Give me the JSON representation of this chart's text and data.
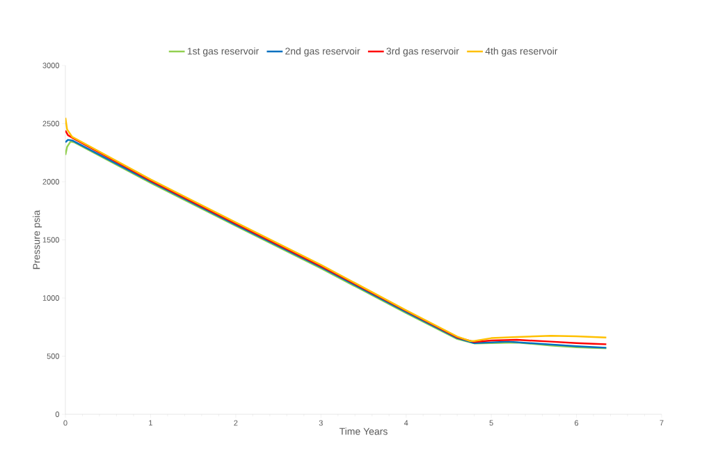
{
  "chart_data": {
    "type": "line",
    "xlabel": "Time    Years",
    "ylabel": "Pressure    psia",
    "xlim": [
      0,
      7
    ],
    "xticks": [
      0,
      1,
      2,
      3,
      4,
      5,
      6,
      7
    ],
    "ylim": [
      0,
      3000
    ],
    "yticks": [
      0,
      500,
      1000,
      1500,
      2000,
      2500,
      3000
    ],
    "grid": false,
    "legend": "top",
    "marker": "none",
    "line_style": "solid",
    "series": [
      {
        "name": "1st gas reservoir",
        "color": "#92d050",
        "x": [
          0,
          0.02,
          0.06,
          0.1,
          1,
          2,
          3,
          4,
          4.6,
          4.8,
          5,
          5.3,
          5.7,
          6,
          6.35
        ],
        "values": [
          2230,
          2300,
          2345,
          2340,
          1990,
          1620,
          1255,
          870,
          648,
          610,
          612,
          617,
          592,
          577,
          567
        ]
      },
      {
        "name": "2nd gas reservoir",
        "color": "#0070c0",
        "x": [
          0,
          0.03,
          0.08,
          1,
          2,
          3,
          4,
          4.6,
          4.8,
          5.2,
          5.6,
          6,
          6.35
        ],
        "values": [
          2340,
          2360,
          2355,
          2000,
          1630,
          1265,
          880,
          655,
          612,
          625,
          605,
          585,
          572
        ]
      },
      {
        "name": "3rd gas reservoir",
        "color": "#ff0000",
        "x": [
          0,
          0.03,
          0.1,
          1,
          2,
          3,
          4,
          4.6,
          4.8,
          5,
          5.3,
          5.7,
          6,
          6.35
        ],
        "values": [
          2440,
          2400,
          2370,
          2010,
          1640,
          1275,
          890,
          662,
          622,
          635,
          640,
          625,
          612,
          602
        ]
      },
      {
        "name": "4th gas reservoir",
        "color": "#ffc000",
        "x": [
          0,
          0.02,
          0.08,
          1,
          2,
          3,
          4,
          4.6,
          4.75,
          4.8,
          5,
          5.3,
          5.7,
          6,
          6.35
        ],
        "values": [
          2550,
          2450,
          2385,
          2020,
          1650,
          1285,
          895,
          668,
          630,
          630,
          655,
          665,
          675,
          670,
          660
        ]
      }
    ]
  }
}
